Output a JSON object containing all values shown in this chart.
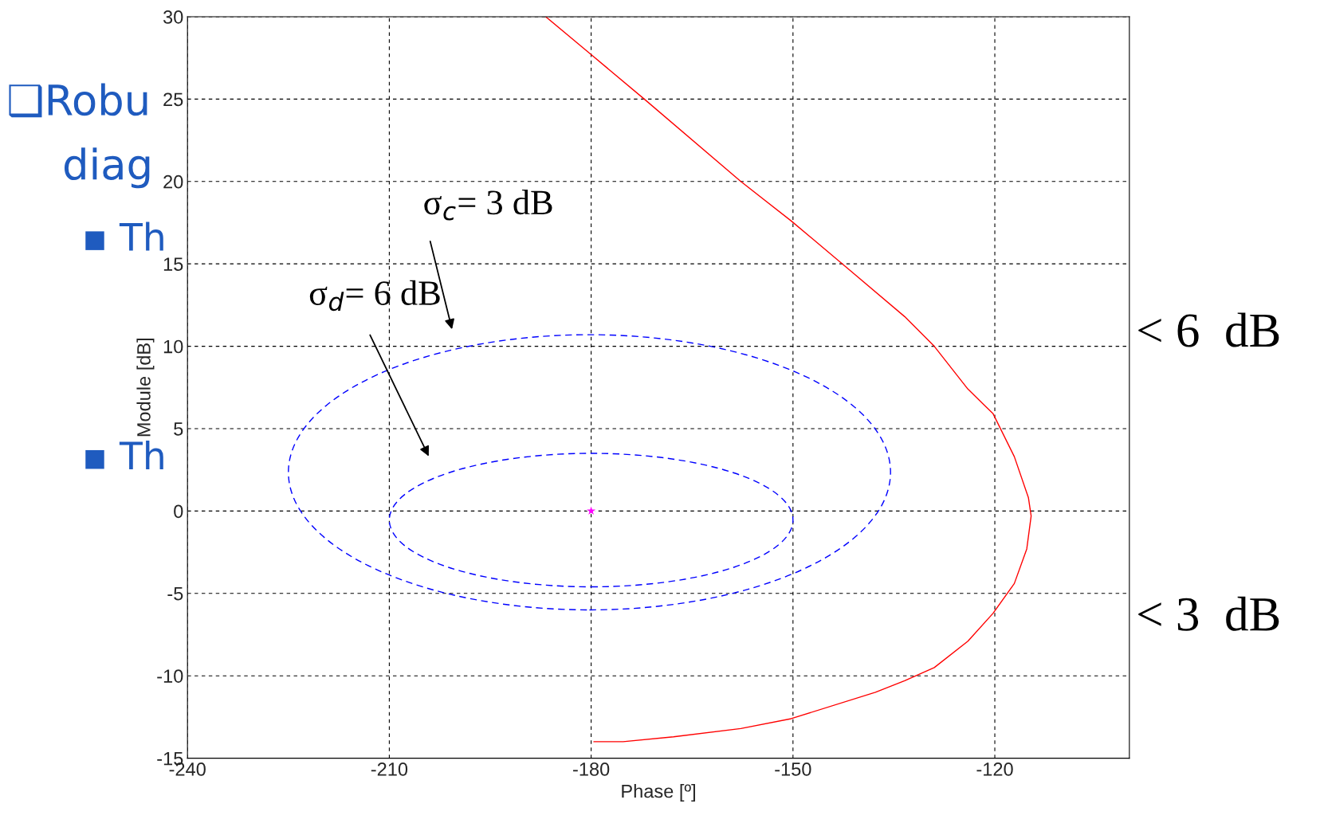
{
  "chart_data": {
    "type": "line",
    "xlabel": "Phase [º]",
    "ylabel": "Module [dB]",
    "xlim": [
      -240,
      -100
    ],
    "xticks": [
      -240,
      -210,
      -180,
      -150,
      -120
    ],
    "ylim": [
      -15,
      30
    ],
    "yticks": [
      -15,
      -10,
      -5,
      0,
      5,
      10,
      15,
      20,
      25,
      30
    ],
    "grid": true,
    "series": [
      {
        "color": "#ff0000",
        "line_style": "solid",
        "x": [
          -186.75,
          -180,
          -172.1,
          -157.75,
          -150.25,
          -141.5,
          -133.4,
          -129,
          -124,
          -120.25,
          -117.1,
          -115,
          -114.6,
          -115.25,
          -117.1,
          -120.25,
          -124,
          -129,
          -133.4,
          -137.75,
          -150.25,
          -157.75,
          -167.75,
          -175.25,
          -179.6
        ],
        "values": [
          30,
          27.7,
          25,
          20,
          17.6,
          14.6,
          11.8,
          10,
          7.4,
          5.9,
          3.3,
          0.8,
          -0.3,
          -2.3,
          -4.4,
          -6.2,
          -7.9,
          -9.5,
          -10.3,
          -11.0,
          -12.6,
          -13.2,
          -13.7,
          -14.0,
          -14.0
        ]
      },
      {
        "type": "scatter",
        "color": "#ff00ff",
        "marker": "star",
        "x": [
          -180
        ],
        "values": [
          0
        ]
      }
    ],
    "annotations": [
      "σ$_{c}$= 3 dB",
      "σ$_{d}$= 6 dB",
      "< 6  dB",
      "< 3  dB",
      "❑Robu",
      "diag",
      "▪ Th",
      "▪ Th"
    ]
  }
}
